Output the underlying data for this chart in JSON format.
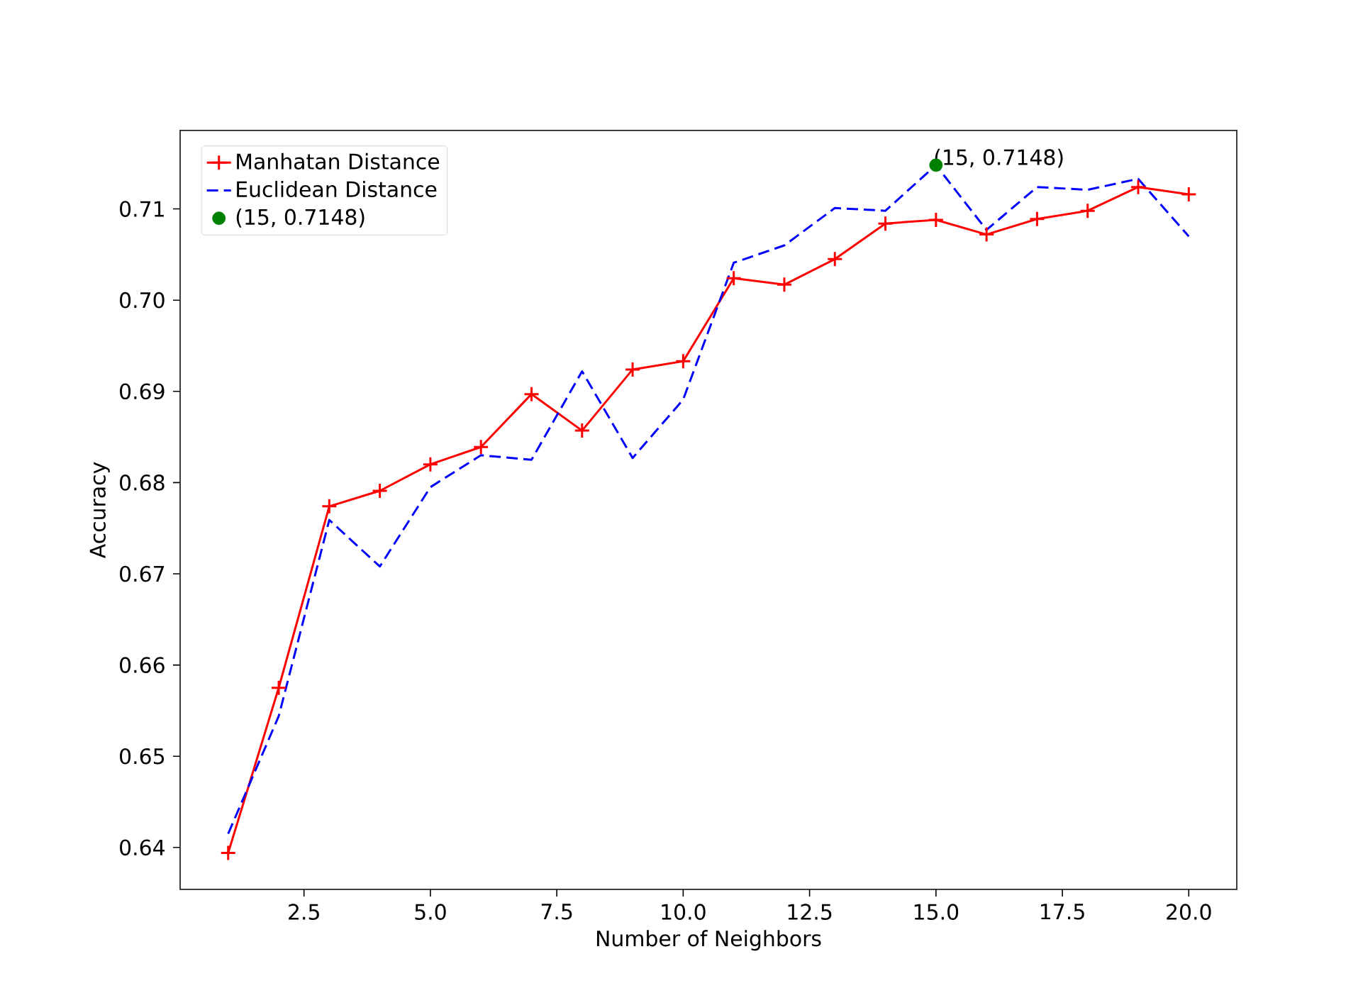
{
  "chart_data": {
    "type": "line",
    "xlabel": "Number of Neighbors",
    "ylabel": "Accuracy",
    "x": [
      1,
      2,
      3,
      4,
      5,
      6,
      7,
      8,
      9,
      10,
      11,
      12,
      13,
      14,
      15,
      16,
      17,
      18,
      19,
      20
    ],
    "series": [
      {
        "name": "Manhatan Distance",
        "color": "#ff0000",
        "marker": "cross",
        "line_style": "solid",
        "values": [
          0.6394,
          0.6575,
          0.6774,
          0.6791,
          0.682,
          0.6839,
          0.6897,
          0.6857,
          0.6924,
          0.6933,
          0.7024,
          0.7017,
          0.7045,
          0.7084,
          0.7088,
          0.7072,
          0.7089,
          0.7098,
          0.7124,
          0.7116
        ]
      },
      {
        "name": "Euclidean Distance",
        "color": "#0000ff",
        "marker": "none",
        "line_style": "dashed",
        "values": [
          0.6415,
          0.6544,
          0.6759,
          0.6708,
          0.6795,
          0.683,
          0.6825,
          0.6922,
          0.6827,
          0.6891,
          0.7041,
          0.706,
          0.7101,
          0.7098,
          0.7148,
          0.7077,
          0.7124,
          0.7121,
          0.7133,
          0.707
        ]
      },
      {
        "name": "(15, 0.7148)",
        "type": "scatter",
        "color": "#008000",
        "marker": "circle",
        "x": [
          15
        ],
        "values": [
          0.7148
        ]
      }
    ],
    "annotations": [
      {
        "text": "(15, 0.7148)",
        "x": 15,
        "y": 0.7148
      }
    ],
    "xlim": [
      0.05,
      20.95
    ],
    "ylim": [
      0.6354,
      0.7186
    ],
    "xticks": [
      {
        "value": 2.5,
        "label": "2.5"
      },
      {
        "value": 5,
        "label": "5.0"
      },
      {
        "value": 7.5,
        "label": "7.5"
      },
      {
        "value": 10,
        "label": "10.0"
      },
      {
        "value": 12.5,
        "label": "12.5"
      },
      {
        "value": 15,
        "label": "15.0"
      },
      {
        "value": 17.5,
        "label": "17.5"
      },
      {
        "value": 20,
        "label": "20.0"
      }
    ],
    "yticks": [
      0.64,
      0.65,
      0.66,
      0.67,
      0.68,
      0.69,
      {
        "value": 0.7,
        "label": "0.70"
      },
      0.71
    ],
    "legend": "top left",
    "grid": false
  }
}
